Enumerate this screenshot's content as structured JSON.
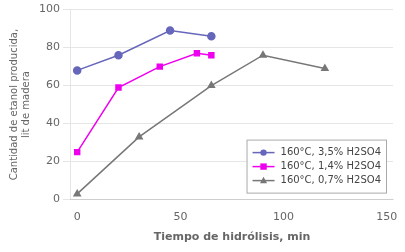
{
  "chart_data": {
    "type": "line",
    "xlabel": "Tiempo de hidrólisis, min",
    "ylabel": "Cantidad de etanol producida,\nlit de madera",
    "series": [
      {
        "name": "160°C, 3,5% H2SO4",
        "color": "#6666bb",
        "marker": "circle",
        "x": [
          0,
          20,
          45,
          65
        ],
        "values": [
          68,
          76,
          89,
          86
        ]
      },
      {
        "name": "160°C, 1,4% H2SO4",
        "color": "#ee00ee",
        "marker": "square",
        "x": [
          0,
          20,
          40,
          58,
          65
        ],
        "values": [
          25,
          59,
          70,
          77,
          76
        ]
      },
      {
        "name": "160°C, 0,7% H2SO4",
        "color": "#777777",
        "marker": "triangle",
        "x": [
          0,
          30,
          65,
          90,
          120
        ],
        "values": [
          3,
          33,
          60,
          76,
          69
        ]
      }
    ],
    "xlim": [
      -3,
      153
    ],
    "xticks": [
      0,
      50,
      100,
      150
    ],
    "ylim": [
      0,
      100
    ],
    "yticks": [
      0,
      20,
      40,
      60,
      80,
      100
    ],
    "grid": "y",
    "legend": "lower right"
  }
}
